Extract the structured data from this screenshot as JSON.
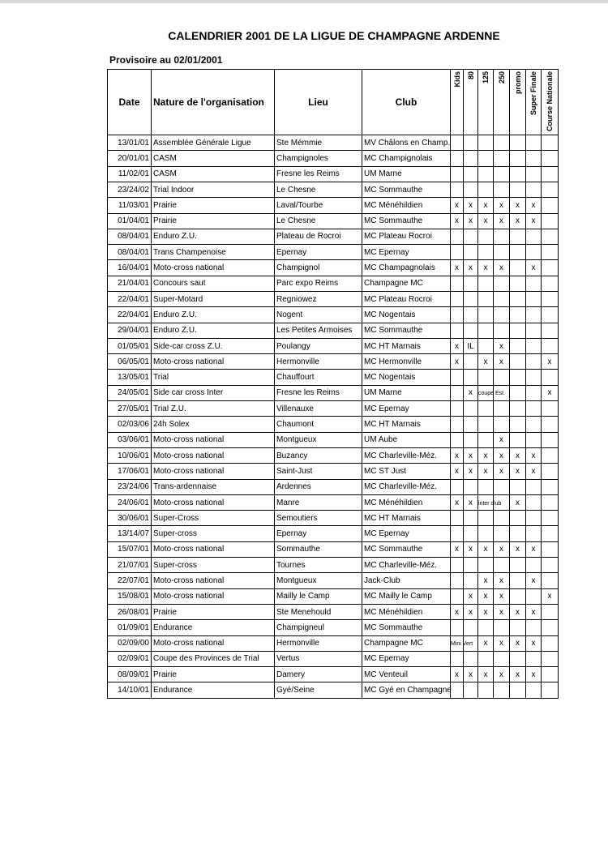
{
  "title": "CALENDRIER 2001 DE LA LIGUE DE CHAMPAGNE ARDENNE",
  "subtitle": "Provisoire au 02/01/2001",
  "table": {
    "headers": [
      "Date",
      "Nature de l'organisation",
      "Lieu",
      "Club",
      "Kids",
      "80",
      "125",
      "250",
      "promo",
      "Super Finale",
      "Course Nationale"
    ],
    "rows": [
      {
        "date": "13/01/01",
        "nature": "Assemblée Générale Ligue",
        "lieu": "Ste Mémmie",
        "club": "MV Châlons en Champ.",
        "marks": [
          null,
          null,
          null,
          null,
          null,
          null,
          null
        ]
      },
      {
        "date": "20/01/01",
        "nature": "CASM",
        "lieu": "Champignoles",
        "club": "MC Champignolais",
        "marks": [
          null,
          null,
          null,
          null,
          null,
          null,
          null
        ]
      },
      {
        "date": "11/02/01",
        "nature": "CASM",
        "lieu": "Fresne les Reims",
        "club": "UM Marne",
        "marks": [
          null,
          null,
          null,
          null,
          null,
          null,
          null
        ]
      },
      {
        "date": "23/24/02",
        "nature": "Trial Indoor",
        "lieu": "Le Chesne",
        "club": "MC Sommauthe",
        "marks": [
          null,
          null,
          null,
          null,
          null,
          null,
          null
        ]
      },
      {
        "date": "11/03/01",
        "nature": "Prairie",
        "lieu": "Laval/Tourbe",
        "club": "MC Ménéhildien",
        "marks": [
          "x",
          "x",
          "x",
          "x",
          "x",
          "x",
          null
        ]
      },
      {
        "date": "01/04/01",
        "nature": "Prairie",
        "lieu": "Le Chesne",
        "club": "MC Sommauthe",
        "marks": [
          "x",
          "x",
          "x",
          "x",
          "x",
          "x",
          null
        ]
      },
      {
        "date": "08/04/01",
        "nature": "Enduro Z.U.",
        "lieu": "Plateau de Rocroi",
        "club": "MC Plateau Rocroi",
        "marks": [
          null,
          null,
          null,
          null,
          null,
          null,
          null
        ]
      },
      {
        "date": "08/04/01",
        "nature": "Trans Champenoise",
        "lieu": "Epernay",
        "club": "MC Epernay",
        "marks": [
          null,
          null,
          null,
          null,
          null,
          null,
          null
        ]
      },
      {
        "date": "16/04/01",
        "nature": "Moto-cross national",
        "lieu": "Champignol",
        "club": "MC Champagnolais",
        "marks": [
          "x",
          "x",
          "x",
          "x",
          null,
          "x",
          null
        ]
      },
      {
        "date": "21/04/01",
        "nature": "Concours saut",
        "lieu": "Parc expo Reims",
        "club": "Champagne MC",
        "marks": [
          null,
          null,
          null,
          null,
          null,
          null,
          null
        ]
      },
      {
        "date": "22/04/01",
        "nature": "Super-Motard",
        "lieu": "Regniowez",
        "club": "MC Plateau Rocroi",
        "marks": [
          null,
          null,
          null,
          null,
          null,
          null,
          null
        ]
      },
      {
        "date": "22/04/01",
        "nature": "Enduro Z.U.",
        "lieu": "Nogent",
        "club": "MC Nogentais",
        "marks": [
          null,
          null,
          null,
          null,
          null,
          null,
          null
        ]
      },
      {
        "date": "29/04/01",
        "nature": "Enduro Z.U.",
        "lieu": "Les Petites Armoises",
        "club": "MC Sommauthe",
        "marks": [
          null,
          null,
          null,
          null,
          null,
          null,
          null
        ]
      },
      {
        "date": "01/05/01",
        "nature": "Side-car cross Z.U.",
        "lieu": "Poulangy",
        "club": "MC HT Marnais",
        "marks": [
          "x",
          "IL",
          null,
          "x",
          null,
          null,
          null
        ]
      },
      {
        "date": "06/05/01",
        "nature": "Moto-cross national",
        "lieu": "Hermonville",
        "club": "MC Hermonville",
        "marks": [
          "x",
          null,
          "x",
          "x",
          null,
          null,
          "x"
        ]
      },
      {
        "date": "13/05/01",
        "nature": "Trial",
        "lieu": "Chauffourt",
        "club": "MC Nogentais",
        "marks": [
          null,
          null,
          null,
          null,
          null,
          null,
          null
        ]
      },
      {
        "date": "24/05/01",
        "nature": "Side car cross Inter",
        "lieu": "Fresne les Reims",
        "club": "UM Marne",
        "marks": [
          null,
          "x",
          "coupe Est",
          null,
          null,
          null,
          "x"
        ]
      },
      {
        "date": "27/05/01",
        "nature": "Trial Z.U.",
        "lieu": "Villenauxe",
        "club": "MC Epernay",
        "marks": [
          null,
          null,
          null,
          null,
          null,
          null,
          null
        ]
      },
      {
        "date": "02/03/06",
        "nature": "24h Solex",
        "lieu": "Chaumont",
        "club": "MC HT Marnais",
        "marks": [
          null,
          null,
          null,
          null,
          null,
          null,
          null
        ]
      },
      {
        "date": "03/06/01",
        "nature": "Moto-cross national",
        "lieu": "Montgueux",
        "club": "UM Aube",
        "marks": [
          null,
          null,
          null,
          "x",
          null,
          null,
          null
        ]
      },
      {
        "date": "10/06/01",
        "nature": "Moto-cross national",
        "lieu": "Buzancy",
        "club": "MC Charleville-Méz.",
        "marks": [
          "x",
          "x",
          "x",
          "x",
          "x",
          "x",
          null
        ]
      },
      {
        "date": "17/06/01",
        "nature": "Moto-cross national",
        "lieu": "Saint-Just",
        "club": "MC ST Just",
        "marks": [
          "x",
          "x",
          "x",
          "x",
          "x",
          "x",
          null
        ]
      },
      {
        "date": "23/24/06",
        "nature": "Trans-ardennaise",
        "lieu": "Ardennes",
        "club": "MC Charleville-Méz.",
        "marks": [
          null,
          null,
          null,
          null,
          null,
          null,
          null
        ]
      },
      {
        "date": "24/06/01",
        "nature": "Moto-cross national",
        "lieu": "Manre",
        "club": "MC Ménéhildien",
        "marks": [
          "x",
          "x",
          "inter club",
          null,
          "x",
          null,
          null
        ]
      },
      {
        "date": "30/06/01",
        "nature": "Super-Cross",
        "lieu": "Semoutiers",
        "club": "MC HT Marnais",
        "marks": [
          null,
          null,
          null,
          null,
          null,
          null,
          null
        ]
      },
      {
        "date": "13/14/07",
        "nature": "Super-cross",
        "lieu": "Epernay",
        "club": "MC Epernay",
        "marks": [
          null,
          null,
          null,
          null,
          null,
          null,
          null
        ]
      },
      {
        "date": "15/07/01",
        "nature": "Moto-cross national",
        "lieu": "Sommauthe",
        "club": "MC Sommauthe",
        "marks": [
          "x",
          "x",
          "x",
          "x",
          "x",
          "x",
          null
        ]
      },
      {
        "date": "21/07/01",
        "nature": "Super-cross",
        "lieu": "Tournes",
        "club": "MC Charleville-Méz.",
        "marks": [
          null,
          null,
          null,
          null,
          null,
          null,
          null
        ]
      },
      {
        "date": "22/07/01",
        "nature": "Moto-cross national",
        "lieu": "Montgueux",
        "club": "Jack-Club",
        "marks": [
          null,
          null,
          "x",
          "x",
          null,
          "x",
          null
        ]
      },
      {
        "date": "15/08/01",
        "nature": "Moto-cross national",
        "lieu": "Mailly le Camp",
        "club": "MC Mailly le Camp",
        "marks": [
          null,
          "x",
          "x",
          "x",
          null,
          null,
          "x"
        ]
      },
      {
        "date": "26/08/01",
        "nature": "Prairie",
        "lieu": "Ste Menehould",
        "club": "MC Ménéhildien",
        "marks": [
          "x",
          "x",
          "x",
          "x",
          "x",
          "x",
          null
        ]
      },
      {
        "date": "01/09/01",
        "nature": "Endurance",
        "lieu": "Champigneul",
        "club": "MC Sommauthe",
        "marks": [
          null,
          null,
          null,
          null,
          null,
          null,
          null
        ]
      },
      {
        "date": "02/09/00",
        "nature": "Moto-cross national",
        "lieu": "Hermonville",
        "club": "Champagne MC",
        "marks": [
          "Mini Vert",
          null,
          "x",
          "x",
          "x",
          "x",
          null
        ]
      },
      {
        "date": "02/09/01",
        "nature": "Coupe des Provinces de Trial",
        "lieu": "Vertus",
        "club": "MC Epernay",
        "marks": [
          null,
          null,
          null,
          null,
          null,
          null,
          null
        ]
      },
      {
        "date": "08/09/01",
        "nature": "Prairie",
        "lieu": "Damery",
        "club": "MC Venteuil",
        "marks": [
          "x",
          "x",
          "x",
          "x",
          "x",
          "x",
          null
        ]
      },
      {
        "date": "14/10/01",
        "nature": "Endurance",
        "lieu": "Gyé/Seine",
        "club": "MC Gyé en Champagne",
        "marks": [
          null,
          null,
          null,
          null,
          null,
          null,
          null
        ]
      }
    ]
  }
}
